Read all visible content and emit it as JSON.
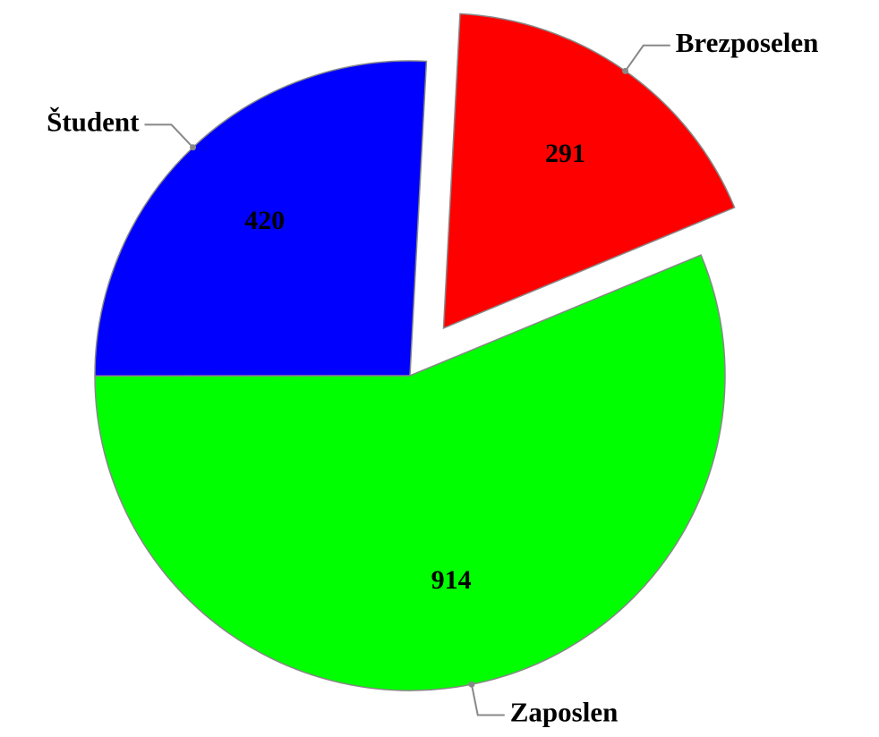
{
  "chart_data": {
    "type": "pie",
    "categories": [
      "Brezposelen",
      "Zaposlen",
      "Študent"
    ],
    "values": [
      291,
      914,
      420
    ],
    "colors": [
      "#ff0000",
      "#00ff00",
      "#0000ff"
    ],
    "exploded": [
      true,
      false,
      false
    ]
  }
}
